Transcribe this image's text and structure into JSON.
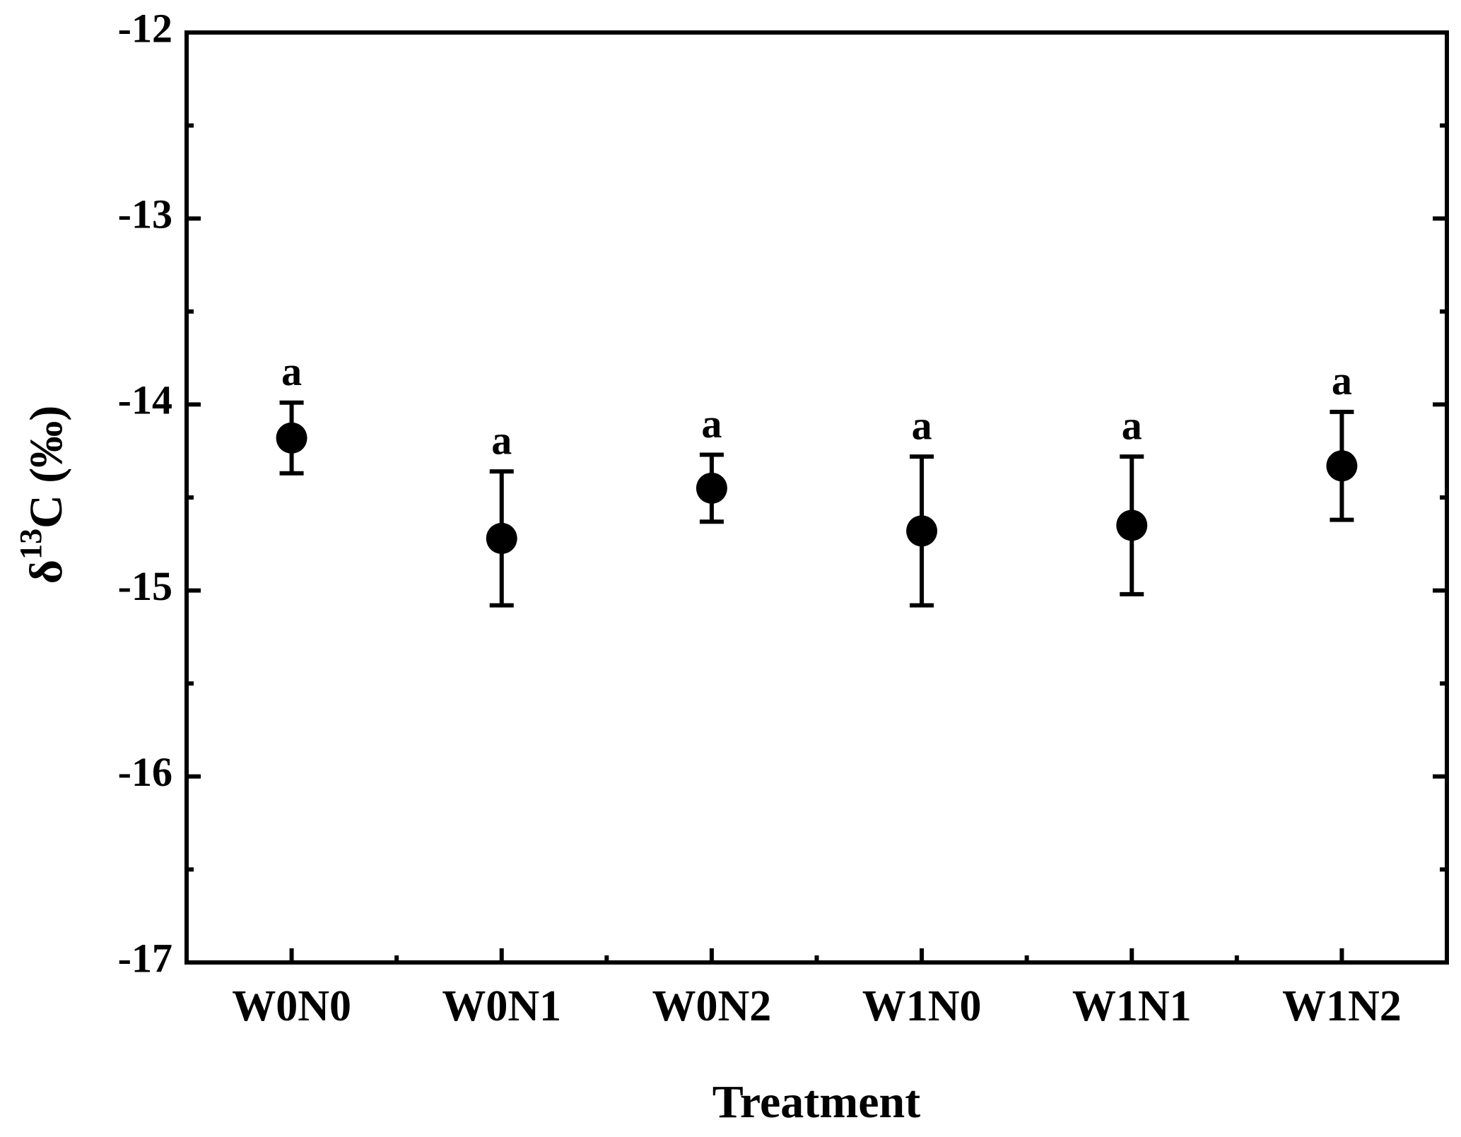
{
  "chart_data": {
    "type": "errorbar",
    "xlabel": "Treatment",
    "ylabel": [
      "δ",
      "13",
      "C (‰)"
    ],
    "categories": [
      "W0N0",
      "W0N1",
      "W0N2",
      "W1N0",
      "W1N1",
      "W1N2"
    ],
    "values": [
      -14.18,
      -14.72,
      -14.45,
      -14.68,
      -14.65,
      -14.33
    ],
    "errors": [
      0.19,
      0.36,
      0.18,
      0.4,
      0.37,
      0.29
    ],
    "annotations": [
      "a",
      "a",
      "a",
      "a",
      "a",
      "a"
    ],
    "color": "#000000",
    "ylim": [
      -17,
      -12
    ],
    "yticks": [
      -17,
      -16,
      -15,
      -14,
      -13,
      -12
    ]
  }
}
